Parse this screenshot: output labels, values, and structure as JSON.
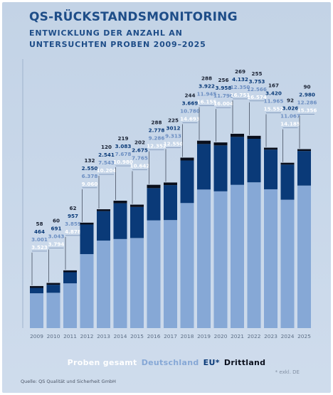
{
  "title": "QS-RÜCKSTANDSMONITORING",
  "subtitle_line1": "ENTWICKLUNG DER ANZAHL AN",
  "subtitle_line2": "UNTERSUCHTEN PROBEN 2009–2025",
  "legend": {
    "total": "Proben gesamt",
    "de": "Deutschland",
    "eu": "EU*",
    "third": "Drittland"
  },
  "footnote": "* exkl. DE",
  "source": "Quelle: QS Qualität und Sicherheit GmbH",
  "colors": {
    "total_label": "#ffffff",
    "de": "#86a8d6",
    "eu": "#0a3a78",
    "third": "#0a0f1c",
    "de_label": "#6d8fc2",
    "eu_label": "#0a3a78",
    "third_label": "#1a2233"
  },
  "chart_data": {
    "type": "bar",
    "stacked": true,
    "categories": [
      "2009",
      "2010",
      "2011",
      "2012",
      "2013",
      "2014",
      "2015",
      "2016",
      "2017",
      "2018",
      "2019",
      "2020",
      "2021",
      "2022",
      "2023",
      "2024",
      "2025"
    ],
    "series": [
      {
        "name": "Deutschland",
        "values": [
          3001,
          3043,
          3859,
          6378,
          7543,
          7678,
          7765,
          9286,
          9313,
          10780,
          11945,
          11790,
          12350,
          12566,
          11965,
          11067,
          12286
        ]
      },
      {
        "name": "EU*",
        "values": [
          464,
          691,
          957,
          2550,
          2541,
          3083,
          2675,
          2778,
          3012,
          3669,
          3922,
          3958,
          4132,
          3753,
          3420,
          3026,
          2980
        ]
      },
      {
        "name": "Drittland",
        "values": [
          58,
          60,
          62,
          132,
          120,
          219,
          202,
          288,
          225,
          244,
          288,
          256,
          269,
          255,
          167,
          92,
          90
        ]
      }
    ],
    "totals": [
      3523,
      3794,
      4878,
      9060,
      10204,
      10980,
      10642,
      12352,
      12550,
      14693,
      16155,
      16004,
      16751,
      16574,
      15552,
      14185,
      15356
    ],
    "labels_display": {
      "third": [
        "58",
        "60",
        "62",
        "132",
        "120",
        "219",
        "202",
        "288",
        "225",
        "244",
        "288",
        "256",
        "269",
        "255",
        "167",
        "92",
        "90"
      ],
      "eu": [
        "464",
        "691",
        "957",
        "2.550",
        "2.541",
        "3.083",
        "2.675",
        "2.778",
        "3012",
        "3.669",
        "3.922",
        "3.958",
        "4.132",
        "3.753",
        "3.420",
        "3.026",
        "2.980"
      ],
      "de": [
        "3.001",
        "3.043",
        "3.859",
        "6.378",
        "7.543",
        "7.678",
        "7.765",
        "9.286",
        "9.313",
        "10.780",
        "11.945",
        "11.790",
        "12.350",
        "12.566",
        "11.965",
        "11.067",
        "12.286"
      ],
      "total": [
        "3.523",
        "3.794",
        "4.878",
        "9.060",
        "10.204",
        "10.980",
        "10.642",
        "12.352",
        "12.550",
        "14.693",
        "16.155",
        "16.004",
        "16.751",
        "16.574",
        "15.552",
        "14.185",
        "15.356"
      ]
    },
    "ylim": [
      0,
      17000
    ],
    "grid": false,
    "legend_position": "bottom"
  }
}
